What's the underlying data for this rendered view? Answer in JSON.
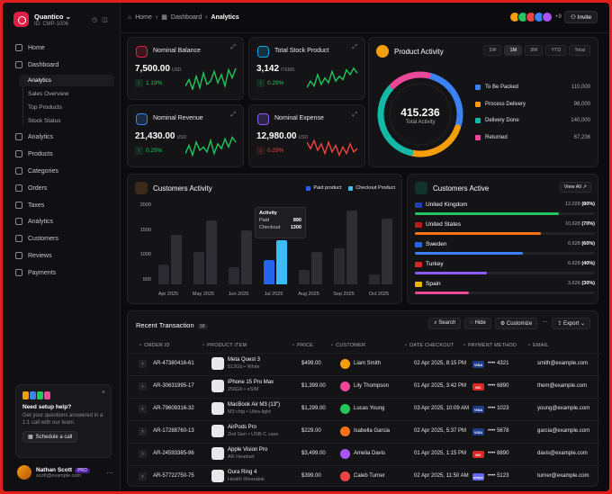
{
  "app": {
    "name": "Quantico",
    "id": "ID: CMP-1006"
  },
  "nav": {
    "home": "Home",
    "dashboard": "Dashboard",
    "dashboard_sub": [
      "Analytics",
      "Sales Overview",
      "Top Products",
      "Stock Status"
    ],
    "items": [
      "Analytics",
      "Products",
      "Categories",
      "Orders",
      "Taxes",
      "Analytics",
      "Customers",
      "Reviews",
      "Payments"
    ]
  },
  "help": {
    "title": "Need setup help?",
    "text": "Get your questions answered in a 1:1 call with our team.",
    "button": "Schedule a call",
    "close": "×"
  },
  "user": {
    "name": "Nathan Scott",
    "badge": "PRO",
    "email": "scott@example.com"
  },
  "breadcrumb": {
    "home": "Home",
    "section": "Dashboard",
    "current": "Analytics"
  },
  "topbar": {
    "extra_count": "+9",
    "invite": "Invite"
  },
  "stats": [
    {
      "title": "Nominal Balance",
      "value": "7,500.00",
      "unit": "USD",
      "change": "1.19%",
      "trend": "up",
      "color": "#22c55e",
      "icon_color": "#e11d48",
      "icon": "wallet-icon"
    },
    {
      "title": "Total Stock Product",
      "value": "3,142",
      "unit": "ITEMS",
      "change": "0.29%",
      "trend": "up",
      "color": "#22c55e",
      "icon_color": "#0ea5e9",
      "icon": "box-icon"
    },
    {
      "title": "Nominal Revenue",
      "value": "21,430.00",
      "unit": "USD",
      "change": "0.29%",
      "trend": "up",
      "color": "#22c55e",
      "icon_color": "#3b82f6",
      "icon": "revenue-icon"
    },
    {
      "title": "Nominal Expense",
      "value": "12,980.00",
      "unit": "USD",
      "change": "0.29%",
      "trend": "down",
      "color": "#ef4444",
      "icon_color": "#8b5cf6",
      "icon": "expense-icon"
    }
  ],
  "product_activity": {
    "title": "Product Activity",
    "tabs": [
      "1W",
      "1M",
      "3W",
      "YTD",
      "Total"
    ],
    "active_tab": "1M",
    "total": "415.236",
    "total_label": "Total Activity",
    "items": [
      {
        "label": "To Be Packed",
        "value": "110,000",
        "amount": 110000,
        "color": "#3b82f6"
      },
      {
        "label": "Process Delivery",
        "value": "98,000",
        "amount": 98000,
        "color": "#f59e0b"
      },
      {
        "label": "Delivery Done",
        "value": "140,000",
        "amount": 140000,
        "color": "#14b8a6"
      },
      {
        "label": "Returned",
        "value": "67,236",
        "amount": 67236,
        "color": "#ec4899"
      }
    ]
  },
  "customers_activity": {
    "title": "Customers Activity",
    "legend": {
      "paid": "Paid product",
      "checkout": "Checkout Product"
    },
    "tooltip": {
      "title": "Activity",
      "paid_label": "Paid",
      "paid_value": "890",
      "checkout_label": "Checkout",
      "checkout_value": "1300"
    }
  },
  "chart_data": {
    "type": "bar",
    "categories": [
      "Apr 2025",
      "May 2025",
      "Jun 2025",
      "Jul 2025",
      "Aug 2025",
      "Sep 2025",
      "Oct 2025"
    ],
    "y_ticks": [
      "2000",
      "1500",
      "1000",
      "500"
    ],
    "ylim": [
      400,
      2000
    ],
    "series": [
      {
        "name": "Paid product",
        "values": [
          800,
          1050,
          750,
          890,
          700,
          1120,
          600
        ],
        "color": "#2563eb"
      },
      {
        "name": "Checkout Product",
        "values": [
          1400,
          1700,
          1500,
          1300,
          1050,
          1900,
          1720
        ],
        "color": "#38bdf8"
      }
    ]
  },
  "customers_active": {
    "title": "Customers Active",
    "view_all": "View All",
    "countries": [
      {
        "name": "United Kingdom",
        "count": "12,028",
        "pct": "(80%)",
        "fraction": 0.8,
        "color": "#22c55e",
        "flag": "#1e40af"
      },
      {
        "name": "United States",
        "count": "10,628",
        "pct": "(70%)",
        "fraction": 0.7,
        "color": "#f97316",
        "flag": "#b91c1c"
      },
      {
        "name": "Sweden",
        "count": "6,628",
        "pct": "(60%)",
        "fraction": 0.6,
        "color": "#3b82f6",
        "flag": "#2563eb"
      },
      {
        "name": "Turkey",
        "count": "6,628",
        "pct": "(40%)",
        "fraction": 0.4,
        "color": "#8b5cf6",
        "flag": "#dc2626"
      },
      {
        "name": "Spain",
        "count": "3,626",
        "pct": "(30%)",
        "fraction": 0.3,
        "color": "#ec4899",
        "flag": "#eab308"
      }
    ]
  },
  "transactions": {
    "title": "Recent Transaction",
    "count": "38",
    "tools": {
      "search": "Search",
      "hide": "Hide",
      "customize": "Customize",
      "more": "···",
      "export": "Export"
    },
    "columns": [
      "ORDER ID",
      "PRODUCT ITEM",
      "PRICE",
      "CUSTOMER",
      "DATE CHECKOUT",
      "PAYMENT METHOD",
      "EMAIL"
    ],
    "rows": [
      {
        "id": "AR-47380416-61",
        "product": "Meta Quest 3",
        "sub": "512Gb • White",
        "price": "$499.00",
        "customer": "Liam Smith",
        "date": "02 Apr 2025, 8:15 PM",
        "card": "•••• 4321",
        "brand": "VISA",
        "email": "smith@example.com",
        "avatar": "#f59e0b",
        "brand_color": "#1e3a8a"
      },
      {
        "id": "AR-30631995-17",
        "product": "iPhone 15 Pro Max",
        "sub": "256Gb • eSIM",
        "price": "$1,399.00",
        "customer": "Lily Thompson",
        "date": "01 Apr 2025, 3:42 PM",
        "card": "•••• 6890",
        "brand": "MC",
        "email": "them@example.com",
        "avatar": "#ec4899",
        "brand_color": "#dc2626"
      },
      {
        "id": "AR-79609316-32",
        "product": "MacBook Air M3 (13\")",
        "sub": "M3 chip • Ultra-light",
        "price": "$1,299.00",
        "customer": "Lucas Young",
        "date": "03 Apr 2025, 10:09 AM",
        "card": "•••• 1023",
        "brand": "VISA",
        "email": "young@example.com",
        "avatar": "#22c55e",
        "brand_color": "#1e3a8a"
      },
      {
        "id": "AR-17288760-13",
        "product": "AirPods Pro",
        "sub": "2nd Gen • USB-C case",
        "price": "$229.00",
        "customer": "Isabella Garcia",
        "date": "02 Apr 2025, 5:37 PM",
        "card": "•••• 5678",
        "brand": "VISA",
        "email": "garcia@example.com",
        "avatar": "#f97316",
        "brand_color": "#1e3a8a"
      },
      {
        "id": "AR-24593385-96",
        "product": "Apple Vision Pro",
        "sub": "AR Headset",
        "price": "$3,499.00",
        "customer": "Amelia Davis",
        "date": "01 Apr 2025, 1:15 PM",
        "card": "•••• 8890",
        "brand": "MC",
        "email": "davis@example.com",
        "avatar": "#a855f7",
        "brand_color": "#dc2626"
      },
      {
        "id": "AR-57722750-75",
        "product": "Oura Ring 4",
        "sub": "Health Wearable",
        "price": "$399.00",
        "customer": "Caleb Turner",
        "date": "02 Apr 2025, 11:50 AM",
        "card": "•••• 5123",
        "brand": "stripe",
        "email": "turner@example.com",
        "avatar": "#ef4444",
        "brand_color": "#6366f1"
      }
    ]
  }
}
